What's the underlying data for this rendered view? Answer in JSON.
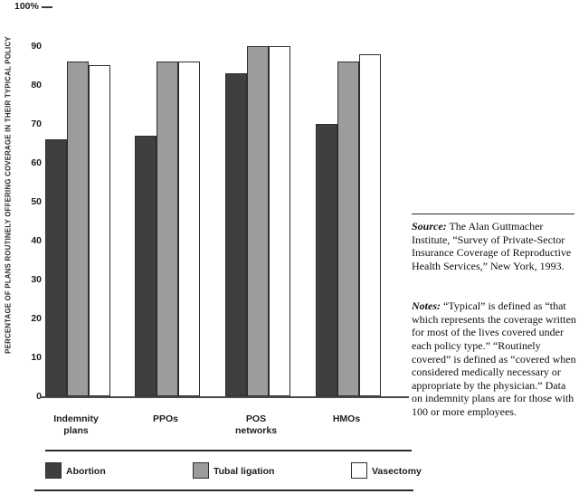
{
  "figure": {
    "background": "#ffffff",
    "accent_dark": "#3f3f3f",
    "accent_gray": "#9c9c9c",
    "accent_white": "#ffffff"
  },
  "chart_data": {
    "type": "bar",
    "title": "",
    "xlabel": "",
    "ylabel": "PERCENTAGE OF PLANS ROUTINELY OFFERING COVERAGE IN THEIR TYPICAL POLICY",
    "top_axis_label": "100%",
    "ylim": [
      0,
      100
    ],
    "grid": false,
    "legend_position": "bottom",
    "y_ticks": [
      90,
      80,
      70,
      60,
      50,
      40,
      30,
      20,
      10,
      0
    ],
    "categories": [
      "Indemnity\nplans",
      "PPOs",
      "POS\nnetworks",
      "HMOs"
    ],
    "series": [
      {
        "name": "Abortion",
        "color": "#3f3f3f",
        "values": [
          66,
          67,
          83,
          70
        ]
      },
      {
        "name": "Tubal ligation",
        "color": "#9c9c9c",
        "values": [
          86,
          86,
          90,
          86
        ]
      },
      {
        "name": "Vasectomy",
        "color": "#ffffff",
        "values": [
          85,
          86,
          90,
          88
        ]
      }
    ]
  },
  "annotations": {
    "source": {
      "label": "Source:",
      "text": " The Alan Guttmacher Institute, “Survey of Private-Sector Insurance Coverage of Reproductive Health Services,” New York, 1993."
    },
    "notes": {
      "label": "Notes:",
      "text": " “Typical” is defined as “that which represents the coverage written for most of the lives covered under each policy type.” “Routinely covered” is defined as “covered when considered medically necessary or appropriate by the physician.” Data on indemnity plans are for those with 100 or more employees."
    }
  }
}
